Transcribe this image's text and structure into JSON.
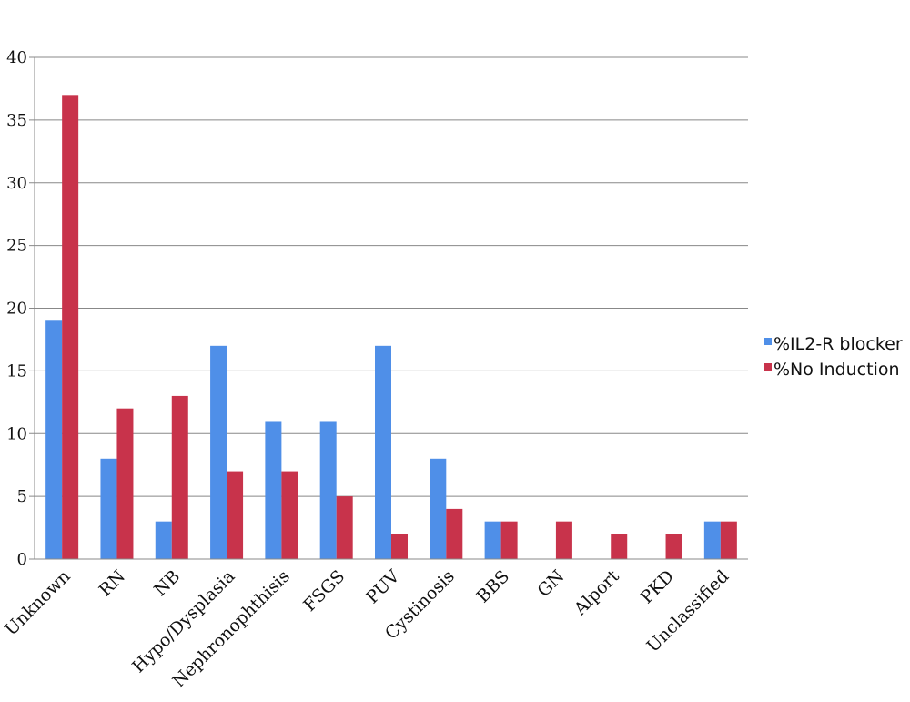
{
  "chart_data": {
    "type": "bar",
    "title": "",
    "xlabel": "",
    "ylabel": "",
    "ylim": [
      0,
      40
    ],
    "yticks": [
      0,
      5,
      10,
      15,
      20,
      25,
      30,
      35,
      40
    ],
    "grid": true,
    "legend_position": "right",
    "categories": [
      "Unknown",
      "RN",
      "NB",
      "Hypo/Dysplasia",
      "Nephronophthisis",
      "FSGS",
      "PUV",
      "Cystinosis",
      "BBS",
      "GN",
      "Alport",
      "PKD",
      "Unclassified"
    ],
    "series": [
      {
        "name": "%IL2-R blocker",
        "color": "#4f8fe8",
        "values": [
          19,
          8,
          3,
          17,
          11,
          11,
          17,
          8,
          3,
          0,
          0,
          0,
          3
        ]
      },
      {
        "name": "%No Induction",
        "color": "#c8334b",
        "values": [
          37,
          12,
          13,
          7,
          7,
          5,
          2,
          4,
          3,
          3,
          2,
          2,
          3
        ]
      }
    ]
  }
}
